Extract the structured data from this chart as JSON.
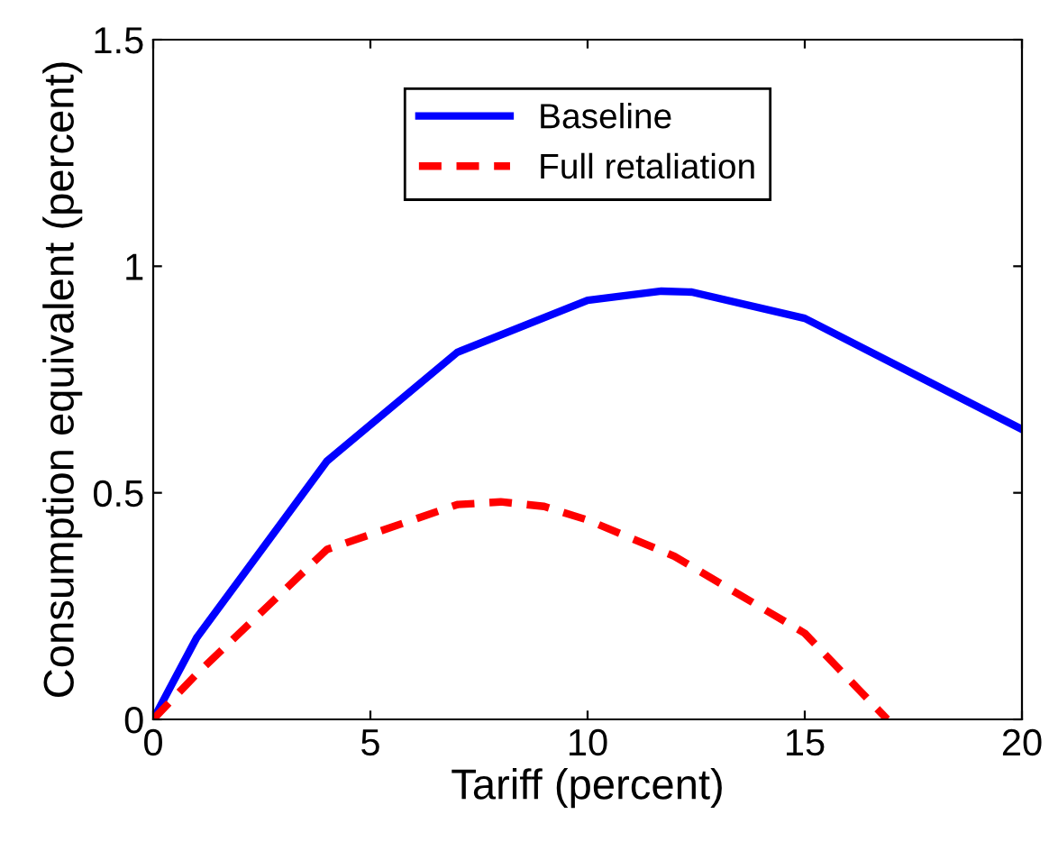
{
  "chart_data": {
    "type": "line",
    "xlabel": "Tariff (percent)",
    "ylabel": "Consumption equivalent (percent)",
    "xlim": [
      0,
      20
    ],
    "ylim": [
      0,
      1.5
    ],
    "xticks": [
      0,
      5,
      10,
      15,
      20
    ],
    "yticks": [
      0,
      0.5,
      1,
      1.5
    ],
    "grid": false,
    "legend": "top",
    "marker": "none",
    "series": [
      {
        "name": "Baseline",
        "color": "#0000ff",
        "line_style": "solid",
        "x": [
          0,
          1,
          4,
          7,
          10,
          11.7,
          12.4,
          15,
          20
        ],
        "values": [
          0,
          0.18,
          0.57,
          0.81,
          0.925,
          0.945,
          0.943,
          0.885,
          0.64
        ]
      },
      {
        "name": "Full retaliation",
        "color": "#ff0000",
        "line_style": "dashed",
        "x": [
          0,
          1,
          4,
          7,
          8,
          9,
          10,
          12,
          15,
          16.9
        ],
        "values": [
          0,
          0.1,
          0.375,
          0.474,
          0.48,
          0.47,
          0.44,
          0.36,
          0.19,
          0
        ]
      }
    ]
  }
}
